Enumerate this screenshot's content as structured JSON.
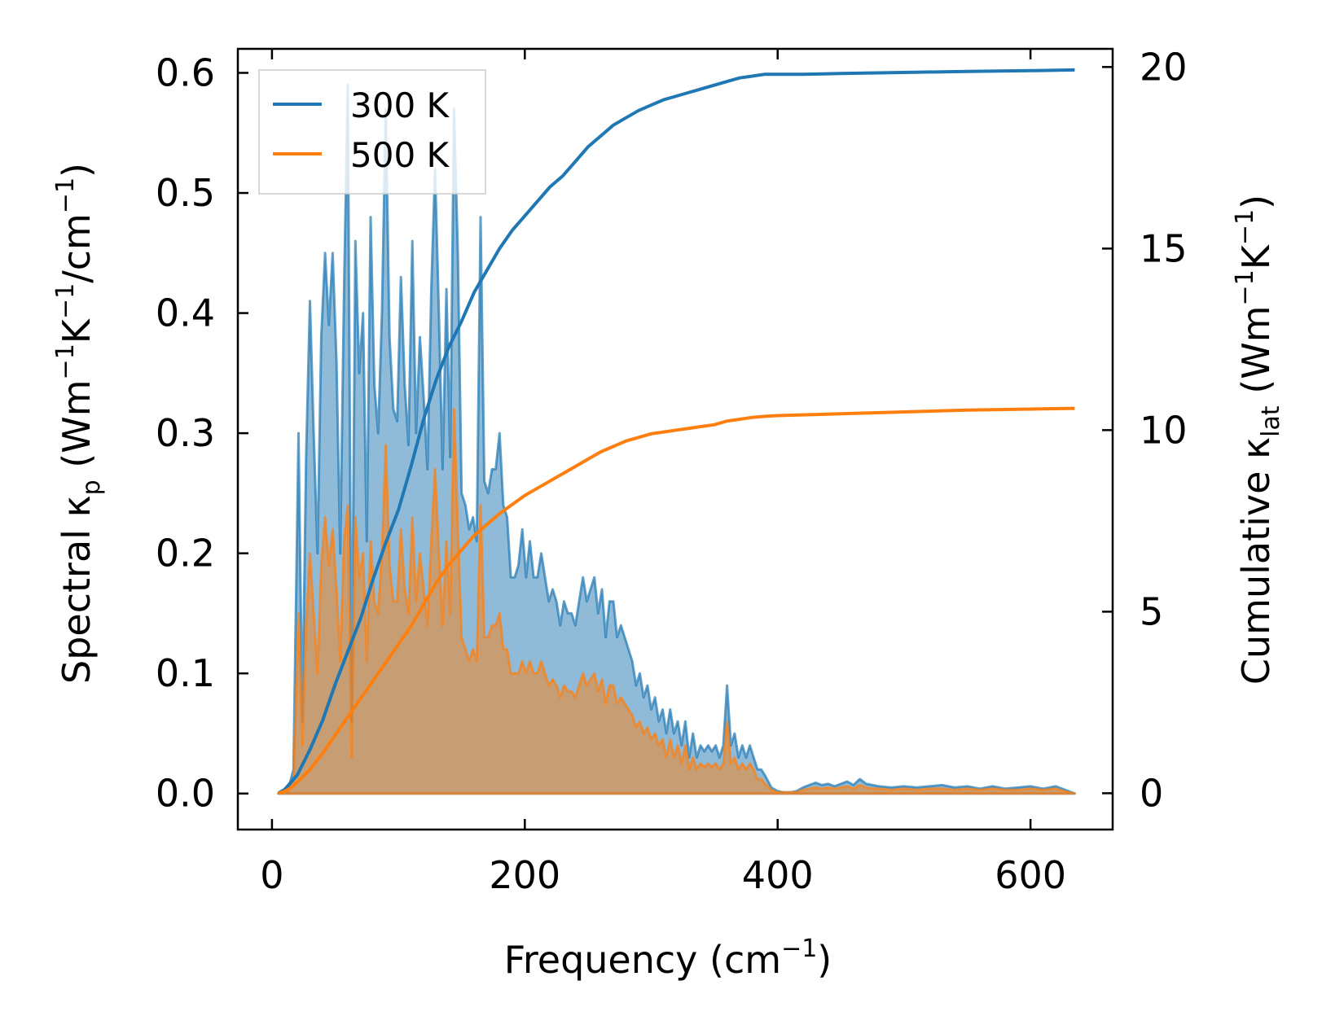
{
  "chart_data": {
    "type": "area",
    "xlabel_main": "Frequency (cm",
    "xlabel_sup": "−1",
    "xlabel_end": ")",
    "ylabel_left": {
      "prefix": "Spectral κ",
      "sub": "p",
      "mid1": " (Wm",
      "sup1": "−1",
      "mid2": "K",
      "sup2": "−1",
      "mid3": "/cm",
      "sup3": "−1",
      "suffix": ")"
    },
    "ylabel_right": {
      "prefix": "Cumulative κ",
      "sub": "lat",
      "mid1": " (Wm",
      "sup1": "−1",
      "mid2": "K",
      "sup2": "−1",
      "suffix": ")"
    },
    "xlim": [
      -27,
      665
    ],
    "ylim_left": [
      -0.03,
      0.62
    ],
    "ylim_right": [
      -1,
      20.5
    ],
    "xticks": [
      0,
      200,
      400,
      600
    ],
    "xtick_labels": [
      "0",
      "200",
      "400",
      "600"
    ],
    "yticks_left": [
      0.0,
      0.1,
      0.2,
      0.3,
      0.4,
      0.5,
      0.6
    ],
    "ytick_labels_left": [
      "0.0",
      "0.1",
      "0.2",
      "0.3",
      "0.4",
      "0.5",
      "0.6"
    ],
    "yticks_right": [
      0,
      5,
      10,
      15,
      20
    ],
    "ytick_labels_right": [
      "0",
      "5",
      "10",
      "15",
      "20"
    ],
    "legend_position": "top-left",
    "legend": [
      "300 K",
      "500 K"
    ],
    "colors": {
      "s300": "#1f77b4",
      "s500": "#ff7f0e"
    },
    "spectral": [
      {
        "name": "300 K",
        "x": [
          5,
          12,
          17,
          21,
          24,
          27,
          30,
          33,
          36,
          39,
          42,
          45,
          48,
          51,
          54,
          57,
          60,
          63,
          66,
          69,
          72,
          75,
          78,
          81,
          84,
          87,
          90,
          93,
          96,
          99,
          102,
          105,
          108,
          111,
          114,
          117,
          120,
          123,
          126,
          129,
          132,
          135,
          138,
          141,
          144,
          147,
          150,
          153,
          156,
          159,
          162,
          165,
          168,
          171,
          174,
          177,
          180,
          183,
          186,
          189,
          192,
          195,
          198,
          201,
          204,
          207,
          210,
          213,
          216,
          219,
          222,
          225,
          228,
          231,
          234,
          237,
          240,
          243,
          246,
          249,
          252,
          255,
          258,
          261,
          264,
          267,
          270,
          273,
          276,
          279,
          282,
          285,
          288,
          291,
          294,
          297,
          300,
          303,
          306,
          309,
          312,
          315,
          318,
          321,
          324,
          327,
          330,
          333,
          336,
          339,
          342,
          345,
          348,
          351,
          354,
          357,
          360,
          363,
          366,
          369,
          372,
          375,
          378,
          381,
          384,
          387,
          390,
          395,
          400,
          405,
          410,
          415,
          420,
          425,
          430,
          435,
          440,
          445,
          450,
          455,
          460,
          465,
          470,
          475,
          480,
          490,
          500,
          510,
          520,
          530,
          540,
          550,
          560,
          570,
          580,
          590,
          600,
          610,
          620,
          630,
          635
        ],
        "y": [
          0,
          0,
          0.02,
          0.3,
          0.06,
          0.28,
          0.41,
          0.3,
          0.2,
          0.38,
          0.45,
          0.39,
          0.45,
          0.36,
          0.2,
          0.42,
          0.59,
          0.06,
          0.46,
          0.35,
          0.4,
          0.21,
          0.48,
          0.34,
          0.3,
          0.4,
          0.57,
          0.38,
          0.32,
          0.31,
          0.43,
          0.34,
          0.29,
          0.46,
          0.3,
          0.38,
          0.33,
          0.27,
          0.42,
          0.52,
          0.4,
          0.27,
          0.42,
          0.28,
          0.57,
          0.45,
          0.25,
          0.24,
          0.22,
          0.23,
          0.21,
          0.48,
          0.26,
          0.25,
          0.27,
          0.27,
          0.3,
          0.24,
          0.23,
          0.18,
          0.18,
          0.19,
          0.22,
          0.18,
          0.21,
          0.18,
          0.18,
          0.2,
          0.18,
          0.16,
          0.17,
          0.16,
          0.14,
          0.16,
          0.15,
          0.15,
          0.14,
          0.16,
          0.18,
          0.16,
          0.17,
          0.18,
          0.15,
          0.17,
          0.13,
          0.16,
          0.16,
          0.13,
          0.14,
          0.13,
          0.12,
          0.11,
          0.09,
          0.1,
          0.08,
          0.09,
          0.07,
          0.08,
          0.06,
          0.07,
          0.05,
          0.07,
          0.05,
          0.06,
          0.04,
          0.06,
          0.03,
          0.05,
          0.03,
          0.04,
          0.035,
          0.04,
          0.035,
          0.04,
          0.03,
          0.04,
          0.09,
          0.04,
          0.05,
          0.03,
          0.04,
          0.03,
          0.04,
          0.03,
          0.02,
          0.02,
          0.015,
          0.005,
          0.002,
          0.001,
          0.001,
          0.002,
          0.005,
          0.007,
          0.009,
          0.007,
          0.008,
          0.006,
          0.008,
          0.01,
          0.007,
          0.012,
          0.008,
          0.007,
          0.006,
          0.005,
          0.006,
          0.005,
          0.006,
          0.007,
          0.005,
          0.006,
          0.004,
          0.006,
          0.004,
          0.005,
          0.006,
          0.004,
          0.006,
          0.002,
          0
        ]
      },
      {
        "name": "500 K",
        "x": [
          5,
          12,
          17,
          21,
          24,
          27,
          30,
          33,
          36,
          39,
          42,
          45,
          48,
          51,
          54,
          57,
          60,
          63,
          66,
          69,
          72,
          75,
          78,
          81,
          84,
          87,
          90,
          93,
          96,
          99,
          102,
          105,
          108,
          111,
          114,
          117,
          120,
          123,
          126,
          129,
          132,
          135,
          138,
          141,
          144,
          147,
          150,
          153,
          156,
          159,
          162,
          165,
          168,
          171,
          174,
          177,
          180,
          183,
          186,
          189,
          192,
          195,
          198,
          201,
          204,
          207,
          210,
          213,
          216,
          219,
          222,
          225,
          228,
          231,
          234,
          237,
          240,
          243,
          246,
          249,
          252,
          255,
          258,
          261,
          264,
          267,
          270,
          273,
          276,
          279,
          282,
          285,
          288,
          291,
          294,
          297,
          300,
          303,
          306,
          309,
          312,
          315,
          318,
          321,
          324,
          327,
          330,
          333,
          336,
          339,
          342,
          345,
          348,
          351,
          354,
          357,
          360,
          363,
          366,
          369,
          372,
          375,
          378,
          381,
          384,
          387,
          390,
          395,
          400,
          405,
          410,
          415,
          420,
          425,
          430,
          435,
          440,
          445,
          450,
          455,
          460,
          465,
          470,
          475,
          480,
          490,
          500,
          510,
          520,
          530,
          540,
          550,
          560,
          570,
          580,
          590,
          600,
          610,
          620,
          630,
          635
        ],
        "y": [
          0,
          0,
          0.01,
          0.15,
          0.04,
          0.14,
          0.2,
          0.15,
          0.1,
          0.19,
          0.23,
          0.19,
          0.22,
          0.17,
          0.11,
          0.21,
          0.24,
          0.03,
          0.23,
          0.18,
          0.2,
          0.11,
          0.21,
          0.16,
          0.15,
          0.2,
          0.29,
          0.19,
          0.16,
          0.16,
          0.22,
          0.17,
          0.15,
          0.23,
          0.16,
          0.2,
          0.17,
          0.14,
          0.21,
          0.27,
          0.2,
          0.14,
          0.21,
          0.15,
          0.32,
          0.22,
          0.13,
          0.12,
          0.11,
          0.12,
          0.11,
          0.24,
          0.13,
          0.13,
          0.14,
          0.14,
          0.15,
          0.12,
          0.12,
          0.1,
          0.1,
          0.1,
          0.11,
          0.1,
          0.11,
          0.1,
          0.1,
          0.11,
          0.1,
          0.09,
          0.095,
          0.09,
          0.08,
          0.09,
          0.085,
          0.085,
          0.08,
          0.09,
          0.1,
          0.09,
          0.095,
          0.1,
          0.085,
          0.095,
          0.075,
          0.09,
          0.09,
          0.075,
          0.08,
          0.075,
          0.07,
          0.065,
          0.055,
          0.06,
          0.05,
          0.055,
          0.045,
          0.05,
          0.04,
          0.045,
          0.03,
          0.045,
          0.03,
          0.04,
          0.025,
          0.04,
          0.02,
          0.03,
          0.02,
          0.025,
          0.022,
          0.025,
          0.022,
          0.025,
          0.02,
          0.025,
          0.06,
          0.025,
          0.03,
          0.02,
          0.025,
          0.02,
          0.025,
          0.02,
          0.012,
          0.012,
          0.008,
          0.003,
          0.001,
          0.001,
          0.001,
          0.001,
          0.003,
          0.004,
          0.005,
          0.004,
          0.005,
          0.004,
          0.005,
          0.006,
          0.004,
          0.007,
          0.005,
          0.004,
          0.004,
          0.003,
          0.004,
          0.003,
          0.004,
          0.004,
          0.003,
          0.004,
          0.003,
          0.004,
          0.003,
          0.003,
          0.004,
          0.003,
          0.004,
          0.001,
          0
        ]
      }
    ],
    "cumulative": [
      {
        "name": "300 K",
        "x": [
          5,
          10,
          15,
          20,
          30,
          40,
          50,
          60,
          70,
          80,
          90,
          100,
          110,
          120,
          130,
          140,
          150,
          160,
          170,
          180,
          190,
          200,
          210,
          220,
          230,
          240,
          250,
          260,
          270,
          280,
          290,
          300,
          310,
          320,
          330,
          340,
          350,
          360,
          370,
          380,
          390,
          400,
          420,
          450,
          500,
          550,
          600,
          635
        ],
        "y": [
          0,
          0.1,
          0.3,
          0.5,
          1.2,
          2.0,
          3.0,
          3.9,
          4.8,
          5.9,
          6.9,
          7.8,
          9.0,
          10.3,
          11.4,
          12.3,
          13.0,
          13.8,
          14.4,
          15.0,
          15.5,
          15.9,
          16.3,
          16.7,
          17.0,
          17.4,
          17.8,
          18.1,
          18.4,
          18.6,
          18.8,
          18.95,
          19.1,
          19.2,
          19.3,
          19.4,
          19.5,
          19.6,
          19.7,
          19.75,
          19.8,
          19.8,
          19.8,
          19.82,
          19.85,
          19.88,
          19.9,
          19.92
        ]
      },
      {
        "name": "500 K",
        "x": [
          5,
          10,
          15,
          20,
          30,
          40,
          50,
          60,
          70,
          80,
          90,
          100,
          110,
          120,
          130,
          140,
          150,
          160,
          170,
          180,
          190,
          200,
          210,
          220,
          230,
          240,
          250,
          260,
          270,
          280,
          290,
          300,
          310,
          320,
          330,
          340,
          350,
          360,
          370,
          380,
          390,
          400,
          420,
          450,
          500,
          550,
          600,
          635
        ],
        "y": [
          0,
          0.05,
          0.15,
          0.3,
          0.65,
          1.1,
          1.6,
          2.1,
          2.6,
          3.1,
          3.6,
          4.1,
          4.6,
          5.2,
          5.8,
          6.3,
          6.7,
          7.1,
          7.4,
          7.7,
          7.95,
          8.2,
          8.4,
          8.6,
          8.8,
          9.0,
          9.2,
          9.4,
          9.55,
          9.7,
          9.8,
          9.9,
          9.95,
          10.0,
          10.05,
          10.1,
          10.15,
          10.25,
          10.3,
          10.35,
          10.38,
          10.4,
          10.42,
          10.45,
          10.5,
          10.55,
          10.58,
          10.6
        ]
      }
    ]
  }
}
